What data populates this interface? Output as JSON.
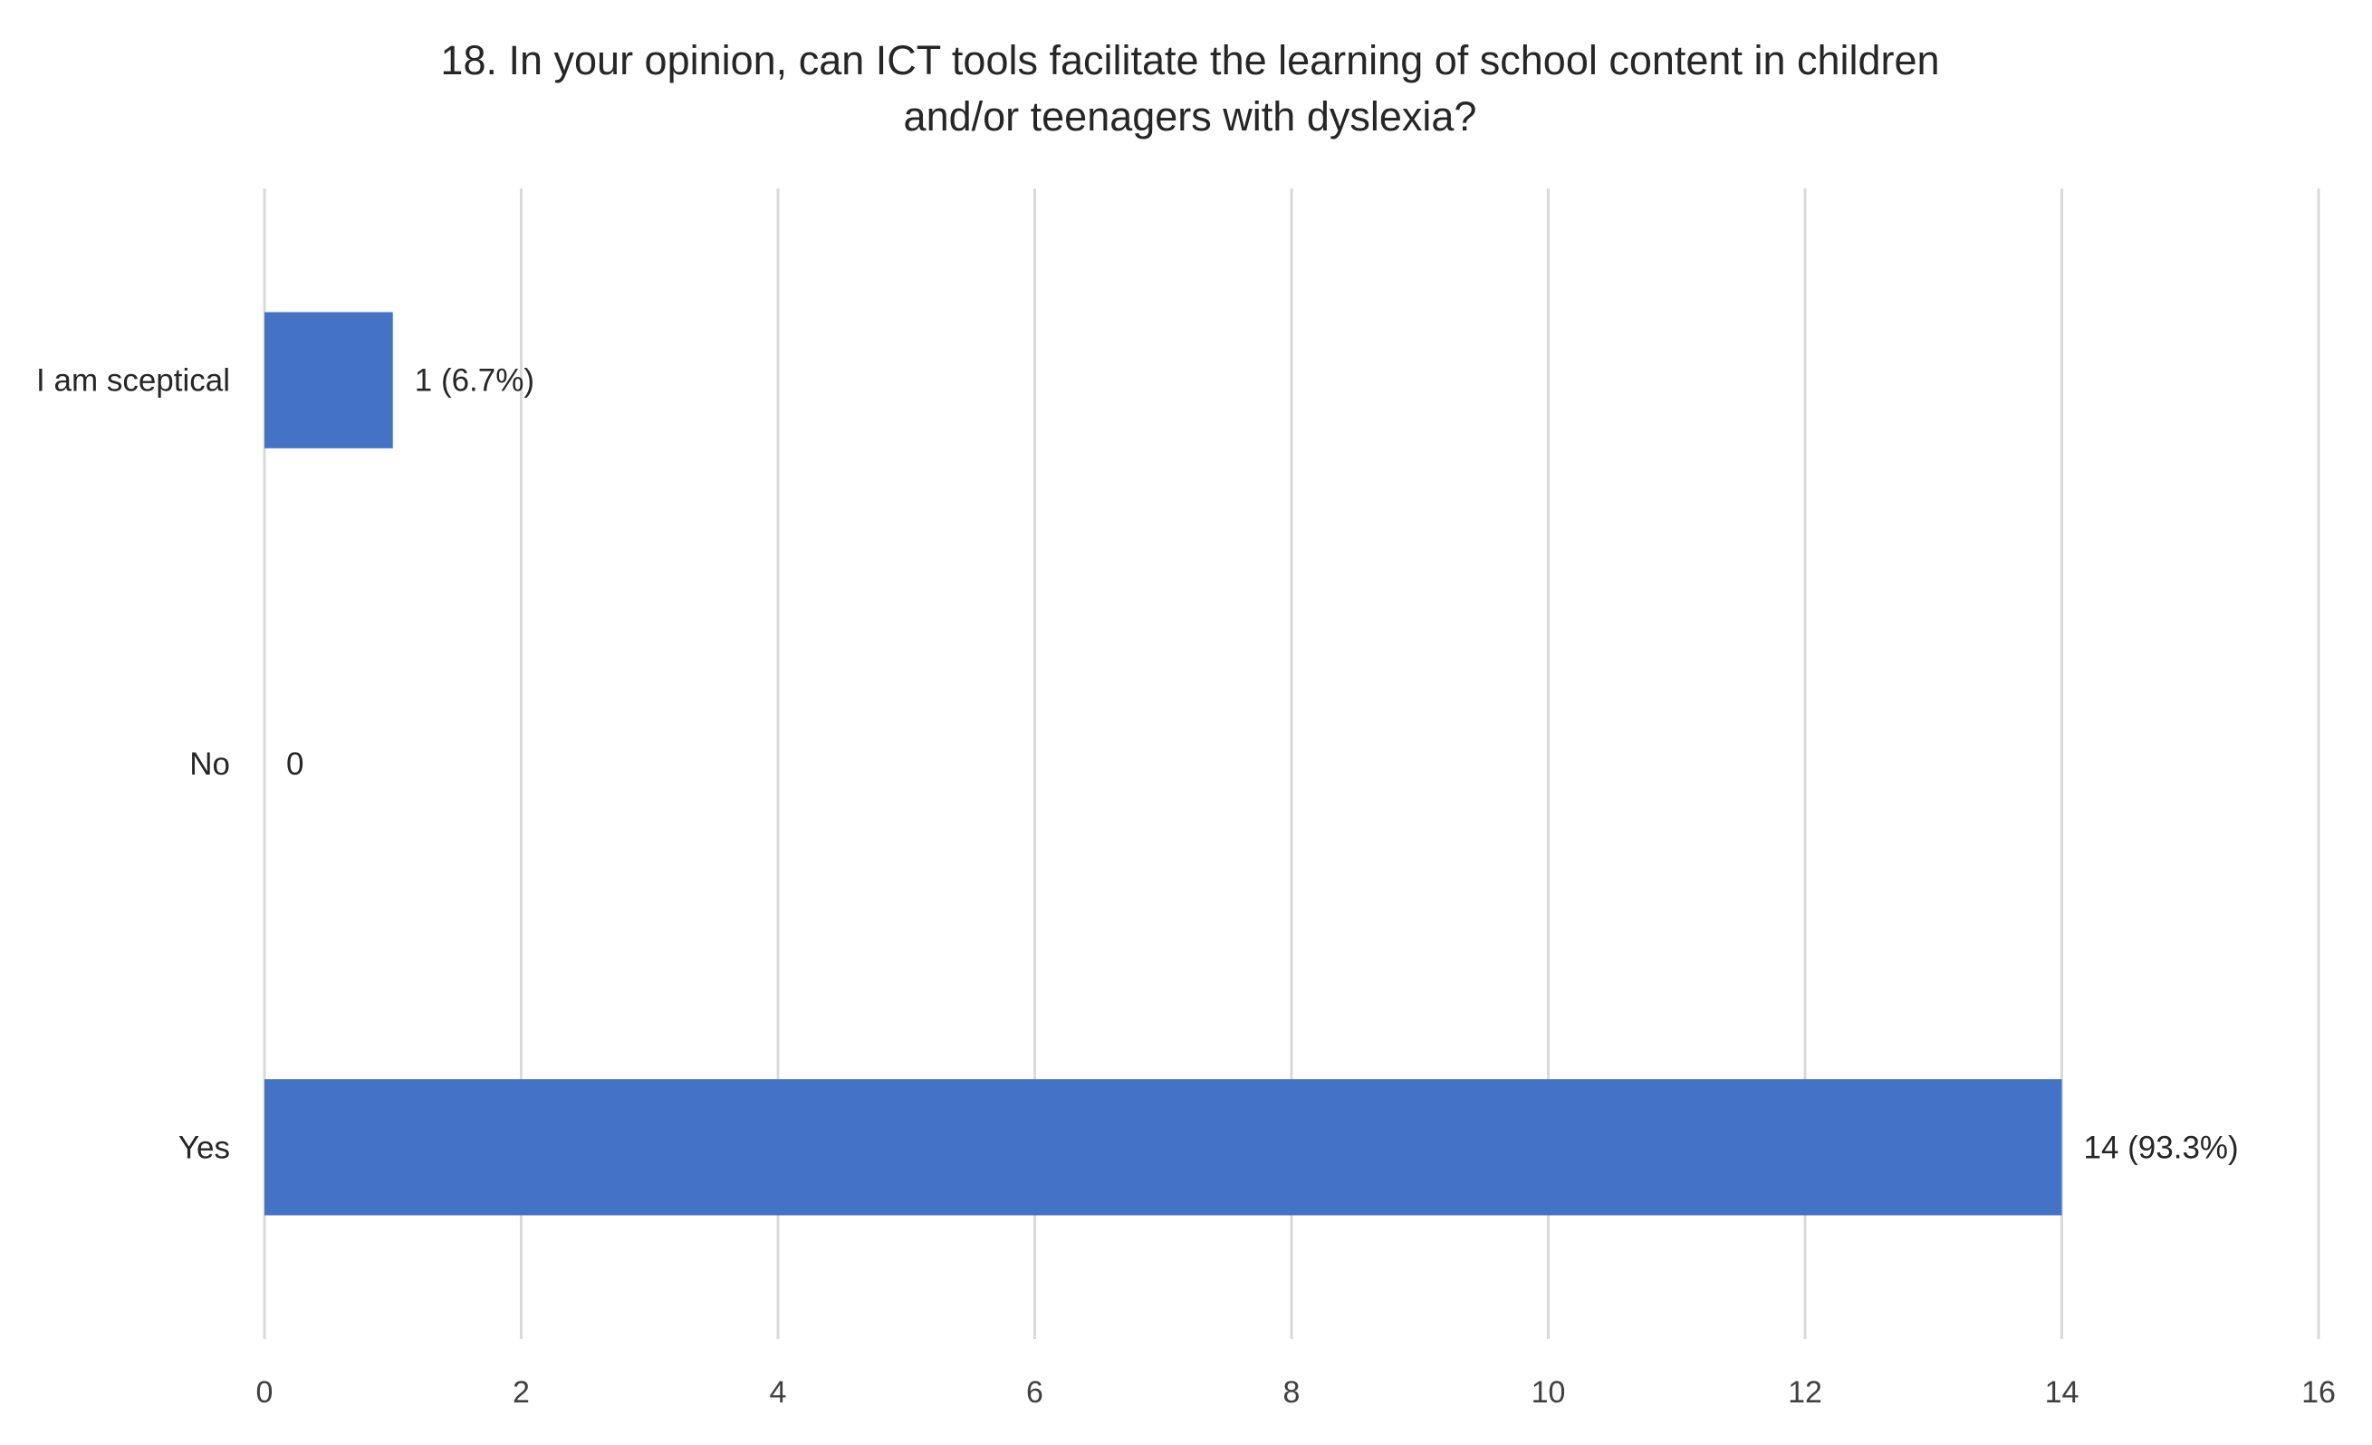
{
  "chart_data": {
    "type": "bar",
    "orientation": "horizontal",
    "title": "18. In your opinion, can ICT tools facilitate the learning of school content in children and/or teenagers with dyslexia?",
    "title_lines": [
      "18. In your opinion, can ICT tools facilitate the learning of school content in children",
      "and/or teenagers with dyslexia?"
    ],
    "categories": [
      "I am sceptical",
      "No",
      "Yes"
    ],
    "values": [
      1,
      0,
      14
    ],
    "data_labels": [
      "1 (6.7%)",
      "0",
      "14 (93.3%)"
    ],
    "xlim": [
      0,
      16
    ],
    "x_ticks": [
      0,
      2,
      4,
      6,
      8,
      10,
      12,
      14,
      16
    ],
    "xlabel": "",
    "ylabel": "",
    "grid": "vertical",
    "legend": "none",
    "bar_color": "#4472c4",
    "gridline_color": "#d9d9d9"
  }
}
